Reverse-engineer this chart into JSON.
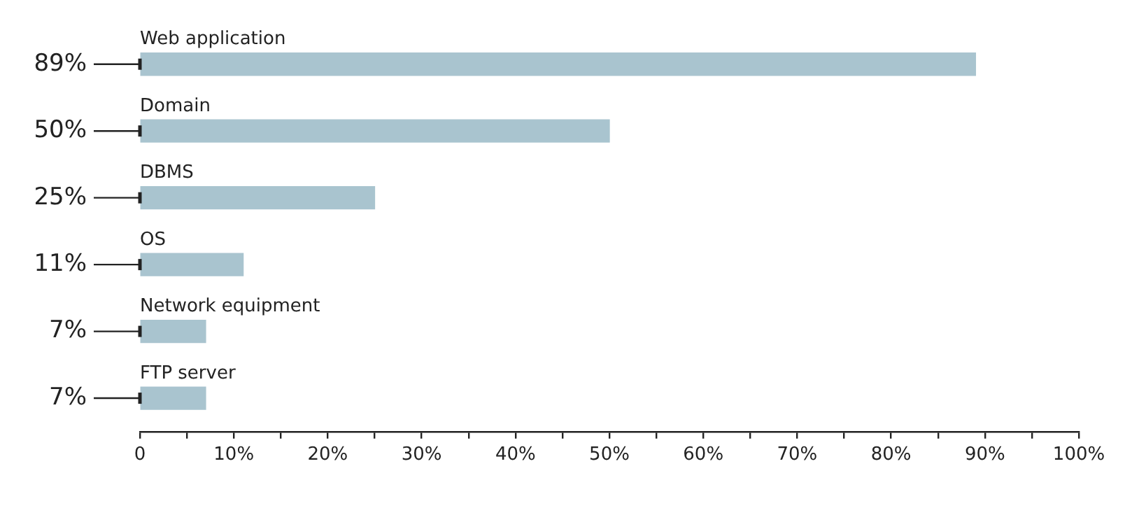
{
  "chart_data": {
    "type": "bar",
    "orientation": "horizontal",
    "categories": [
      "Web application",
      "Domain",
      "DBMS",
      "OS",
      "Network equipment",
      "FTP server"
    ],
    "values": [
      89,
      50,
      25,
      11,
      7,
      7
    ],
    "value_labels": [
      "89%",
      "50%",
      "25%",
      "11%",
      "7%",
      "7%"
    ],
    "color": "#a9c4cf",
    "xlim": [
      0,
      100
    ],
    "xticks": [
      {
        "value": 0,
        "label": "0"
      },
      {
        "value": 5,
        "label": null
      },
      {
        "value": 10,
        "label": "10%"
      },
      {
        "value": 15,
        "label": null
      },
      {
        "value": 20,
        "label": "20%"
      },
      {
        "value": 25,
        "label": null
      },
      {
        "value": 30,
        "label": "30%"
      },
      {
        "value": 35,
        "label": null
      },
      {
        "value": 40,
        "label": "40%"
      },
      {
        "value": 45,
        "label": null
      },
      {
        "value": 50,
        "label": "50%"
      },
      {
        "value": 55,
        "label": null
      },
      {
        "value": 60,
        "label": "60%"
      },
      {
        "value": 65,
        "label": null
      },
      {
        "value": 70,
        "label": "70%"
      },
      {
        "value": 75,
        "label": null
      },
      {
        "value": 80,
        "label": "80%"
      },
      {
        "value": 85,
        "label": null
      },
      {
        "value": 90,
        "label": "90%"
      },
      {
        "value": 95,
        "label": null
      },
      {
        "value": 100,
        "label": "100%"
      }
    ],
    "grid": false,
    "legend": false
  }
}
